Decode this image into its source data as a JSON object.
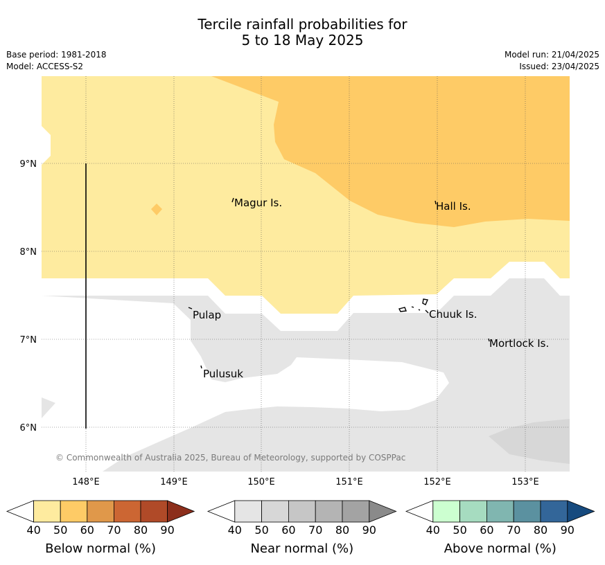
{
  "title": {
    "line1": "Tercile rainfall probabilities for",
    "line2": "5 to 18 May 2025"
  },
  "meta_left": {
    "base_period": "Base period: 1981-2018",
    "model": "Model: ACCESS-S2"
  },
  "meta_right": {
    "model_run": "Model run: 21/04/2025",
    "issued": "Issued: 23/04/2025"
  },
  "map": {
    "lat_ticks": [
      "9°N",
      "8°N",
      "7°N",
      "6°N"
    ],
    "lon_ticks": [
      "148°E",
      "149°E",
      "150°E",
      "151°E",
      "152°E",
      "153°E"
    ],
    "places": {
      "magur": "Magur Is.",
      "hall": "Hall Is.",
      "pulap": "Pulap",
      "chuuk": "Chuuk Is.",
      "mortlock": "Mortlock Is.",
      "pulusuk": "Pulusuk"
    },
    "copyright": "© Commonwealth of Australia 2025, Bureau of Meteorology, supported by COSPPac",
    "colors": {
      "below_40_50": "#feeb9f",
      "below_50_60": "#fecb66",
      "near_40_50": "#e5e5e5",
      "near_50_60": "#d7d7d7",
      "background": "#ffffff"
    }
  },
  "colorbars": {
    "below": {
      "title": "Below normal (%)",
      "ticks": [
        "40",
        "50",
        "60",
        "70",
        "80",
        "90"
      ],
      "colors": [
        "#feeb9f",
        "#fecb66",
        "#e0984a",
        "#cc6633",
        "#b04a28",
        "#8c2e1b"
      ]
    },
    "near": {
      "title": "Near normal (%)",
      "ticks": [
        "40",
        "50",
        "60",
        "70",
        "80",
        "90"
      ],
      "colors": [
        "#e5e5e5",
        "#d7d7d7",
        "#c6c6c6",
        "#b4b4b4",
        "#a3a3a3",
        "#8a8a8a"
      ]
    },
    "above": {
      "title": "Above normal (%)",
      "ticks": [
        "40",
        "50",
        "60",
        "70",
        "80",
        "90"
      ],
      "colors": [
        "#ccffd0",
        "#a6dcc0",
        "#80b6b0",
        "#5b91a0",
        "#336699",
        "#164a7e"
      ]
    }
  }
}
